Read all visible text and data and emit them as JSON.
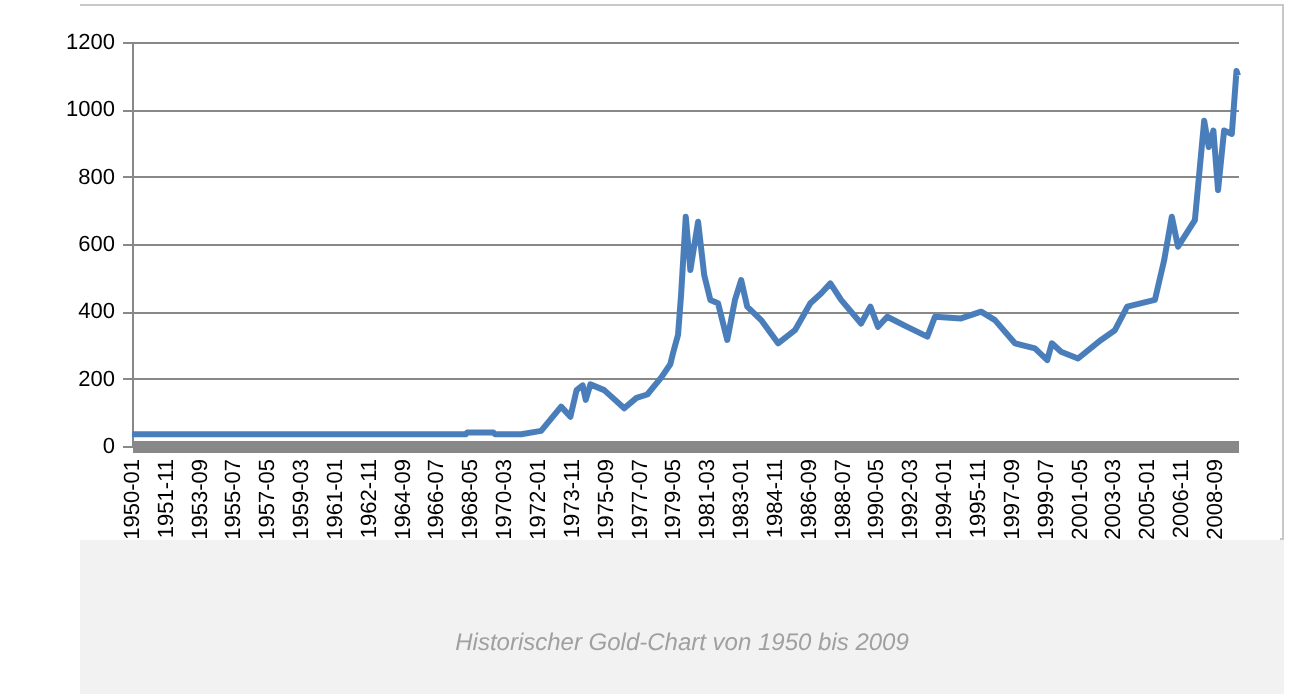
{
  "chart_data": {
    "type": "line",
    "x": [
      "1950-01",
      "1968-02",
      "1968-03",
      "1969-08",
      "1969-09",
      "1971-02",
      "1972-03",
      "1972-07",
      "1973-04",
      "1973-10",
      "1974-02",
      "1974-06",
      "1974-08",
      "1974-11",
      "1975-08",
      "1976-09",
      "1977-05",
      "1977-12",
      "1978-09",
      "1979-03",
      "1979-05",
      "1979-08",
      "1979-10",
      "1980-01",
      "1980-04",
      "1980-09",
      "1981-01",
      "1981-05",
      "1981-10",
      "1982-04",
      "1982-09",
      "1983-01",
      "1983-05",
      "1984-02",
      "1985-01",
      "1985-12",
      "1986-10",
      "1987-05",
      "1987-11",
      "1988-06",
      "1989-07",
      "1990-01",
      "1990-06",
      "1990-12",
      "1992-01",
      "1993-02",
      "1993-07",
      "1994-12",
      "1996-01",
      "1996-10",
      "1997-11",
      "1998-12",
      "1999-08",
      "1999-11",
      "2000-05",
      "2001-04",
      "2002-07",
      "2003-04",
      "2003-12",
      "2005-06",
      "2005-12",
      "2006-05",
      "2006-09",
      "2007-08",
      "2008-02",
      "2008-05",
      "2008-08",
      "2008-11",
      "2009-03",
      "2009-08",
      "2009-11",
      "2009-12"
    ],
    "series": [
      {
        "color": "#4a7ebb",
        "values": [
          35,
          35,
          40,
          40,
          35,
          35,
          45,
          67,
          117,
          87,
          166,
          180,
          137,
          183,
          166,
          112,
          143,
          153,
          203,
          243,
          280,
          330,
          450,
          681,
          523,
          666,
          507,
          434,
          424,
          315,
          434,
          493,
          414,
          374,
          305,
          344,
          424,
          453,
          483,
          434,
          364,
          414,
          354,
          384,
          354,
          325,
          384,
          379,
          399,
          374,
          305,
          290,
          255,
          305,
          280,
          260,
          315,
          344,
          414,
          434,
          552,
          681,
          592,
          671,
          966,
          888,
          937,
          760,
          937,
          927,
          1114,
          1100
        ]
      }
    ],
    "xlim": [
      "1950-01",
      "2009-12"
    ],
    "xticks": [
      "1950-01",
      "1951-11",
      "1953-09",
      "1955-07",
      "1957-05",
      "1959-03",
      "1961-01",
      "1962-11",
      "1964-09",
      "1966-07",
      "1968-05",
      "1970-03",
      "1972-01",
      "1973-11",
      "1975-09",
      "1977-07",
      "1979-05",
      "1981-03",
      "1983-01",
      "1984-11",
      "1986-09",
      "1988-07",
      "1990-05",
      "1992-03",
      "1994-01",
      "1995-11",
      "1997-09",
      "1999-07",
      "2001-05",
      "2003-03",
      "2005-01",
      "2006-11",
      "2008-09"
    ],
    "ylim": [
      0,
      1200
    ],
    "yticks": [
      0,
      200,
      400,
      600,
      800,
      1000,
      1200
    ],
    "grid": "y",
    "annotations": [
      "Historischer Gold-Chart von 1950 bis 2009"
    ]
  }
}
